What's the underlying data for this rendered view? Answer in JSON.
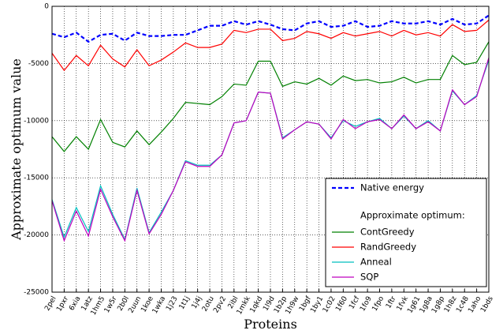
{
  "chart_data": {
    "type": "line",
    "xlabel": "Proteins",
    "ylabel": "Approximate optimum value",
    "categories": [
      "2pel",
      "1pxr",
      "6xia",
      "1atz",
      "1hm5",
      "1w5r",
      "2b0l",
      "2uun",
      "1koe",
      "1wka",
      "1j23",
      "1t1j",
      "1j4j",
      "2otu",
      "2pv2",
      "2ibl",
      "1mkk",
      "1qkd",
      "1l9d",
      "1b2p",
      "1h9w",
      "1bgf",
      "1by1",
      "1c02",
      "1f60",
      "1fcf",
      "1fo9",
      "1fpo",
      "1ftr",
      "1fvk",
      "1g61",
      "1g8a",
      "1g8p",
      "1h8z",
      "1c48",
      "1aho",
      "1bds"
    ],
    "series": [
      {
        "name": "Native energy",
        "color": "#0000ff",
        "linestyle": "dashed",
        "values": [
          -2400,
          -2700,
          -2300,
          -3100,
          -2500,
          -2400,
          -3000,
          -2300,
          -2600,
          -2600,
          -2500,
          -2500,
          -2100,
          -1700,
          -1700,
          -1300,
          -1600,
          -1300,
          -1600,
          -2000,
          -2100,
          -1500,
          -1300,
          -1800,
          -1700,
          -1300,
          -1800,
          -1700,
          -1300,
          -1500,
          -1500,
          -1300,
          -1600,
          -1100,
          -1600,
          -1500,
          -800
        ]
      },
      {
        "name": "ContGreedy",
        "color": "#008000",
        "linestyle": "solid",
        "values": [
          -11400,
          -12700,
          -11400,
          -12500,
          -9900,
          -11900,
          -12300,
          -10900,
          -12100,
          -11000,
          -9800,
          -8400,
          -8500,
          -8600,
          -7900,
          -6800,
          -6900,
          -4800,
          -4800,
          -7000,
          -6600,
          -6800,
          -6300,
          -6900,
          -6100,
          -6500,
          -6400,
          -6700,
          -6600,
          -6200,
          -6700,
          -6400,
          -6400,
          -4300,
          -5100,
          -4900,
          -3100
        ]
      },
      {
        "name": "RandGreedy",
        "color": "#ff0000",
        "linestyle": "solid",
        "values": [
          -4100,
          -5600,
          -4300,
          -5200,
          -3400,
          -4600,
          -5300,
          -3800,
          -5200,
          -4700,
          -4000,
          -3200,
          -3600,
          -3600,
          -3300,
          -2100,
          -2300,
          -2000,
          -2000,
          -3000,
          -2800,
          -2200,
          -2400,
          -2800,
          -2300,
          -2600,
          -2400,
          -2200,
          -2600,
          -2100,
          -2500,
          -2300,
          -2600,
          -1600,
          -2200,
          -2100,
          -1200
        ]
      },
      {
        "name": "Anneal",
        "color": "#00bfbf",
        "linestyle": "solid",
        "values": [
          -16900,
          -20200,
          -17600,
          -19700,
          -15700,
          -18200,
          -20400,
          -15900,
          -19800,
          -18000,
          -16100,
          -13500,
          -13900,
          -13900,
          -13000,
          -10200,
          -10000,
          -7500,
          -7600,
          -11500,
          -10800,
          -10100,
          -10300,
          -11500,
          -10000,
          -10500,
          -10100,
          -9800,
          -10700,
          -9600,
          -10700,
          -10000,
          -10900,
          -7400,
          -8600,
          -7800,
          -4700
        ]
      },
      {
        "name": "SQP",
        "color": "#bf00bf",
        "linestyle": "solid",
        "values": [
          -17000,
          -20500,
          -17900,
          -20100,
          -16000,
          -18400,
          -20500,
          -16100,
          -19900,
          -18200,
          -16100,
          -13600,
          -14000,
          -14000,
          -13000,
          -10200,
          -10000,
          -7500,
          -7600,
          -11600,
          -10800,
          -10100,
          -10300,
          -11600,
          -9900,
          -10700,
          -10100,
          -9900,
          -10700,
          -9500,
          -10700,
          -10100,
          -10900,
          -7300,
          -8600,
          -7900,
          -4500
        ]
      }
    ],
    "legend_heading": "Approximate optimum:",
    "legend": "lower right",
    "ylim": [
      -25000,
      0
    ],
    "yticks": [
      -25000,
      -20000,
      -15000,
      -10000,
      -5000,
      0
    ],
    "grid": true
  }
}
